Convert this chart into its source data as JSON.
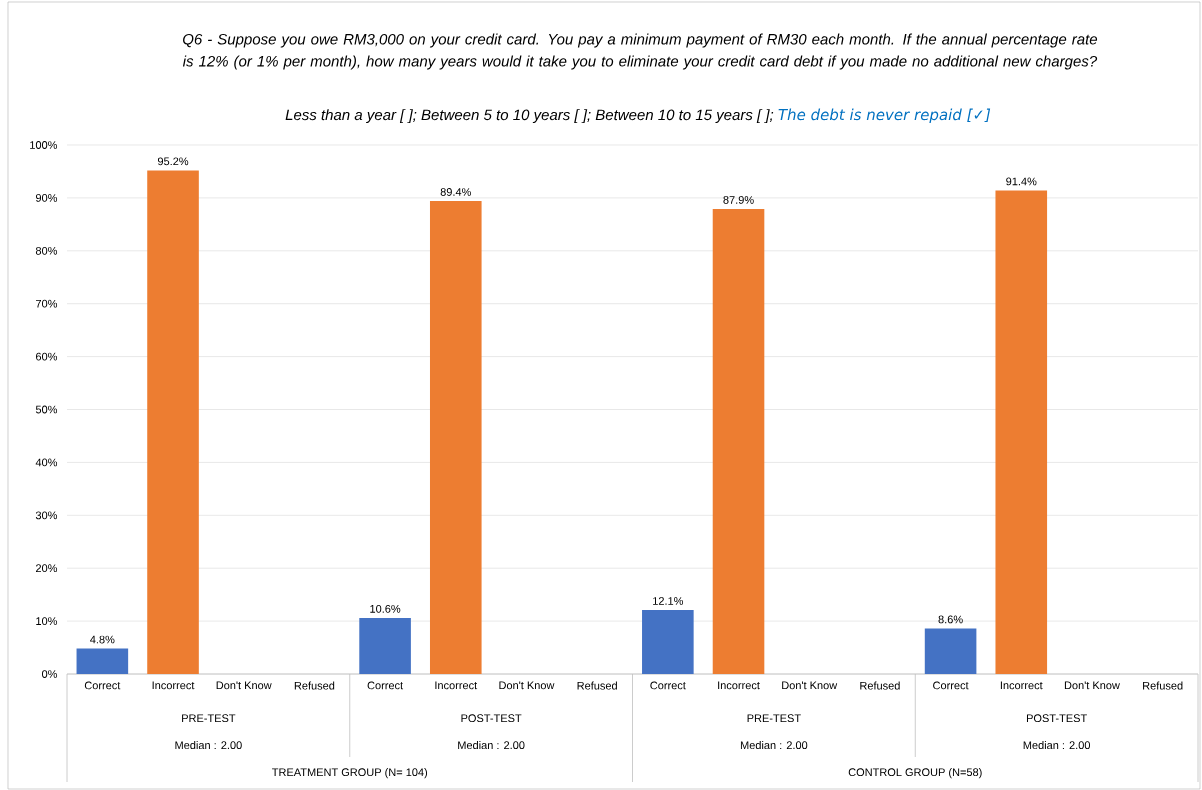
{
  "chart_data": {
    "type": "bar",
    "title": "*Q6 - Suppose you owe RM3,000 on your credit card. You pay a minimum payment of RM30 each month. If the annual percentage rate is 12% (or 1% per month), how many years would it take you to eliminate your credit card debt if you made no additional new charges?*",
    "subtitle": "*Less than a year [   ]; Between 5 to 10 years [  ]; Between 10 to 15 years [  ];*",
    "categories": [
      "Correct",
      "Incorrect",
      "Don't Know",
      "Refused",
      "Correct",
      "Incorrect",
      "Don't Know",
      "Refused",
      "Correct",
      "Incorrect",
      "Don't Know",
      "Refused",
      "Correct",
      "Incorrect",
      "Don't Know",
      "Refused"
    ],
    "values": [
      4.8,
      95.2,
      null,
      null,
      10.6,
      89.4,
      null,
      null,
      12.1,
      87.9,
      null,
      null,
      8.6,
      91.4,
      null,
      null
    ],
    "value_labels": [
      "4.8%",
      "95.2%",
      null,
      null,
      "10.6%",
      "89.4%",
      null,
      null,
      "12.1%",
      "87.9%",
      null,
      null,
      "8.6%",
      "91.4%",
      null,
      null
    ],
    "colors": [
      "#4472c4",
      "#ed7d31",
      null,
      null,
      "#4472c4",
      "#ed7d31",
      null,
      null,
      "#4472c4",
      "#ed7d31",
      null,
      null,
      "#4472c4",
      "#ed7d31",
      null,
      null
    ],
    "ylim": [
      0,
      100
    ],
    "yticks": [
      {
        "value": 0,
        "label": "0%"
      },
      {
        "value": 10,
        "label": "10%"
      },
      {
        "value": 20,
        "label": "20%"
      },
      {
        "value": 30,
        "label": "30%"
      },
      {
        "value": 40,
        "label": "40%"
      },
      {
        "value": 50,
        "label": "50%"
      },
      {
        "value": 60,
        "label": "60%"
      },
      {
        "value": 70,
        "label": "70%"
      },
      {
        "value": 80,
        "label": "80%"
      },
      {
        "value": 90,
        "label": "90%"
      },
      {
        "value": 100,
        "label": "100%"
      }
    ],
    "grid": "y",
    "annotations": [
      "PRE-TEST",
      "POST-TEST",
      "PRE-TEST",
      "POST-TEST",
      "Median : 2.00",
      "Median : 2.00",
      "Median : 2.00",
      "Median : 2.00",
      "TREATMENT GROUP (N= 104)",
      "CONTROL GROUP (N=58)",
      "*The debt is never repaid [✓]*"
    ]
  }
}
